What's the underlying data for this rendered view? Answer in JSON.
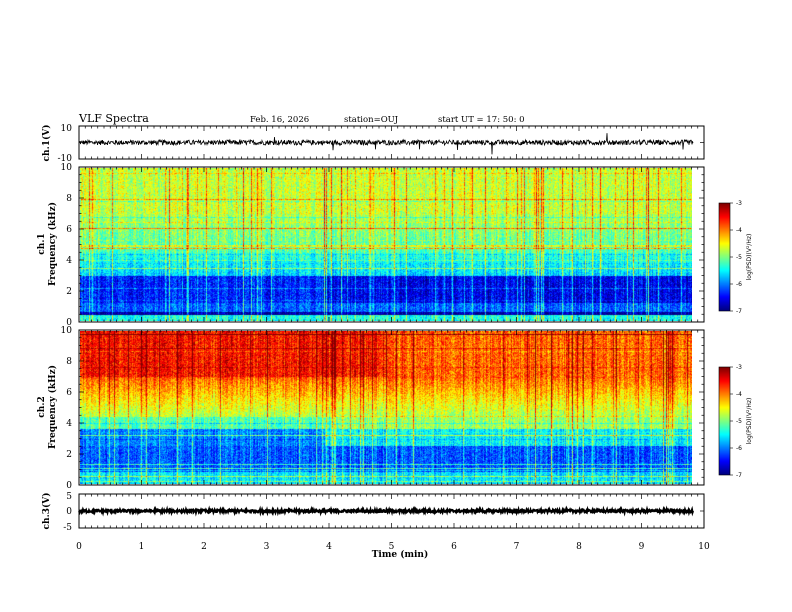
{
  "header": {
    "title": "VLF Spectra",
    "date": "Feb. 16, 2026",
    "station": "station=OUJ",
    "start": "start  UT =   17: 50: 0"
  },
  "chart_data": [
    {
      "type": "line",
      "name": "ch1-waveform",
      "ylabel": "ch.1(V)",
      "ylim": [
        -10,
        10
      ],
      "yticks": [
        "10",
        "-10"
      ],
      "xlim": [
        0,
        10
      ],
      "description_values": {
        "baseline": 0,
        "typical_amplitude": 1.5
      }
    },
    {
      "type": "heatmap",
      "name": "ch1-spectrogram",
      "ylabel": "ch.1",
      "ylabel2": "Frequency (kHz)",
      "ylim": [
        0,
        10
      ],
      "yticks": [
        "0",
        "2",
        "4",
        "6",
        "8",
        "10"
      ],
      "xlim": [
        0,
        9.83
      ],
      "colorbar": {
        "label": "log(PSD)(V²/Hz)",
        "range": [
          -7,
          -3
        ],
        "ticks": [
          "-3",
          "-4",
          "-5",
          "-6",
          "-7"
        ]
      }
    },
    {
      "type": "heatmap",
      "name": "ch2-spectrogram",
      "ylabel": "ch.2",
      "ylabel2": "Frequency (kHz)",
      "ylim": [
        0,
        10
      ],
      "yticks": [
        "0",
        "2",
        "4",
        "6",
        "8",
        "10"
      ],
      "xlim": [
        0,
        9.83
      ],
      "colorbar": {
        "label": "log(PSD)(V²/Hz)",
        "range": [
          -7,
          -3
        ],
        "ticks": [
          "-3",
          "-4",
          "-5",
          "-6",
          "-7"
        ]
      }
    },
    {
      "type": "line",
      "name": "ch3-waveform",
      "ylabel": "ch.3(V)",
      "ylim": [
        -5,
        5
      ],
      "yticks": [
        "5",
        "0",
        "-5"
      ],
      "xlim": [
        0,
        10
      ],
      "description_values": {
        "baseline": 0,
        "typical_amplitude": 0.4
      }
    }
  ],
  "xaxis": {
    "label": "Time (min)",
    "ticks": [
      "0",
      "1",
      "2",
      "3",
      "4",
      "5",
      "6",
      "7",
      "8",
      "9",
      "10"
    ]
  }
}
